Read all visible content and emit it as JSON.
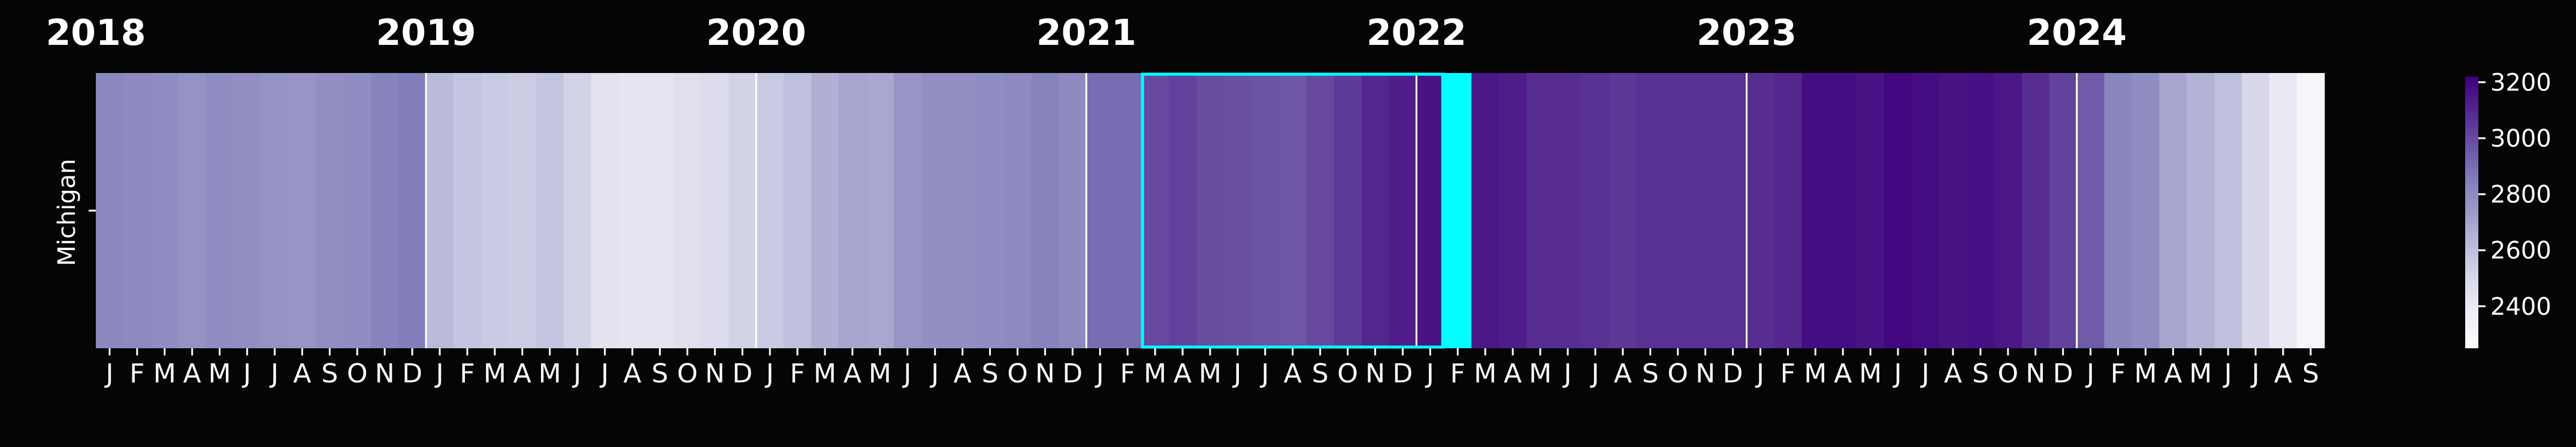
{
  "chart_data": {
    "type": "heatmap",
    "row_label": "Michigan",
    "years": [
      "2018",
      "2019",
      "2020",
      "2021",
      "2022",
      "2023",
      "2024"
    ],
    "month_letters": [
      "J",
      "F",
      "M",
      "A",
      "M",
      "J",
      "J",
      "A",
      "S",
      "O",
      "N",
      "D"
    ],
    "start": "2018-01",
    "end": "2024-08",
    "values": [
      2810,
      2800,
      2790,
      2770,
      2790,
      2780,
      2770,
      2760,
      2780,
      2790,
      2830,
      2850,
      2620,
      2580,
      2560,
      2550,
      2580,
      2520,
      2440,
      2420,
      2430,
      2460,
      2480,
      2520,
      2560,
      2600,
      2660,
      2700,
      2690,
      2760,
      2780,
      2780,
      2790,
      2800,
      2830,
      2800,
      2900,
      2900,
      3000,
      3020,
      2990,
      2980,
      2970,
      2960,
      3000,
      3040,
      3100,
      3130,
      3160,
      3200,
      3150,
      3130,
      3080,
      3080,
      3070,
      3050,
      3070,
      3070,
      3070,
      3070,
      3080,
      3100,
      3180,
      3180,
      3160,
      3200,
      3180,
      3160,
      3170,
      3150,
      3080,
      3020,
      2950,
      2820,
      2790,
      2700,
      2650,
      2600,
      2500,
      2400,
      2290
    ],
    "colorbar": {
      "min": 2250,
      "max": 3220,
      "ticks": [
        "2400",
        "2600",
        "2800",
        "3000",
        "3200"
      ]
    },
    "colormap": "Purples",
    "highlight": {
      "outline_start": "2021-03",
      "outline_end": "2022-01",
      "filled": "2022-02",
      "color": "#00ffff"
    },
    "year_separator_color": "#ffffff",
    "background": "#050505"
  }
}
